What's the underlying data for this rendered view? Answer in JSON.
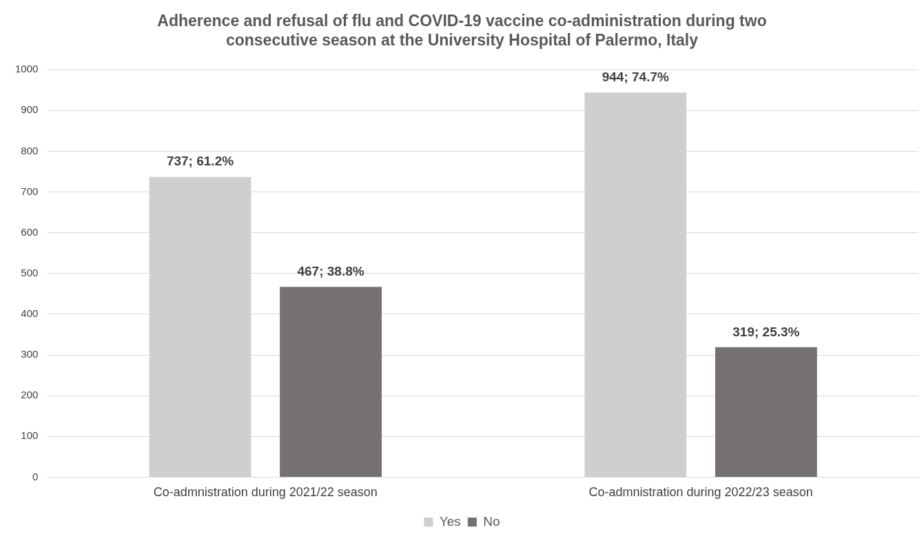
{
  "chart_data": {
    "type": "bar",
    "title": "Adherence and refusal of flu and COVID-19 vaccine co-administration during two consecutive season at the University Hospital of Palermo, Italy",
    "categories": [
      "Co-admnistration during 2021/22 season",
      "Co-admnistration during 2022/23 season"
    ],
    "series": [
      {
        "name": "Yes",
        "color": "#d0cfce",
        "values": [
          737,
          944
        ],
        "value_labels": [
          "737; 61.2%",
          "944; 74.7%"
        ]
      },
      {
        "name": "No",
        "color": "#767171",
        "values": [
          467,
          319
        ],
        "value_labels": [
          "467; 38.8%",
          "319; 25.3%"
        ]
      }
    ],
    "ylim": [
      0,
      1000
    ],
    "yticks": [
      0,
      100,
      200,
      300,
      400,
      500,
      600,
      700,
      800,
      900,
      1000
    ],
    "grid": "y",
    "legend": "bottom"
  }
}
